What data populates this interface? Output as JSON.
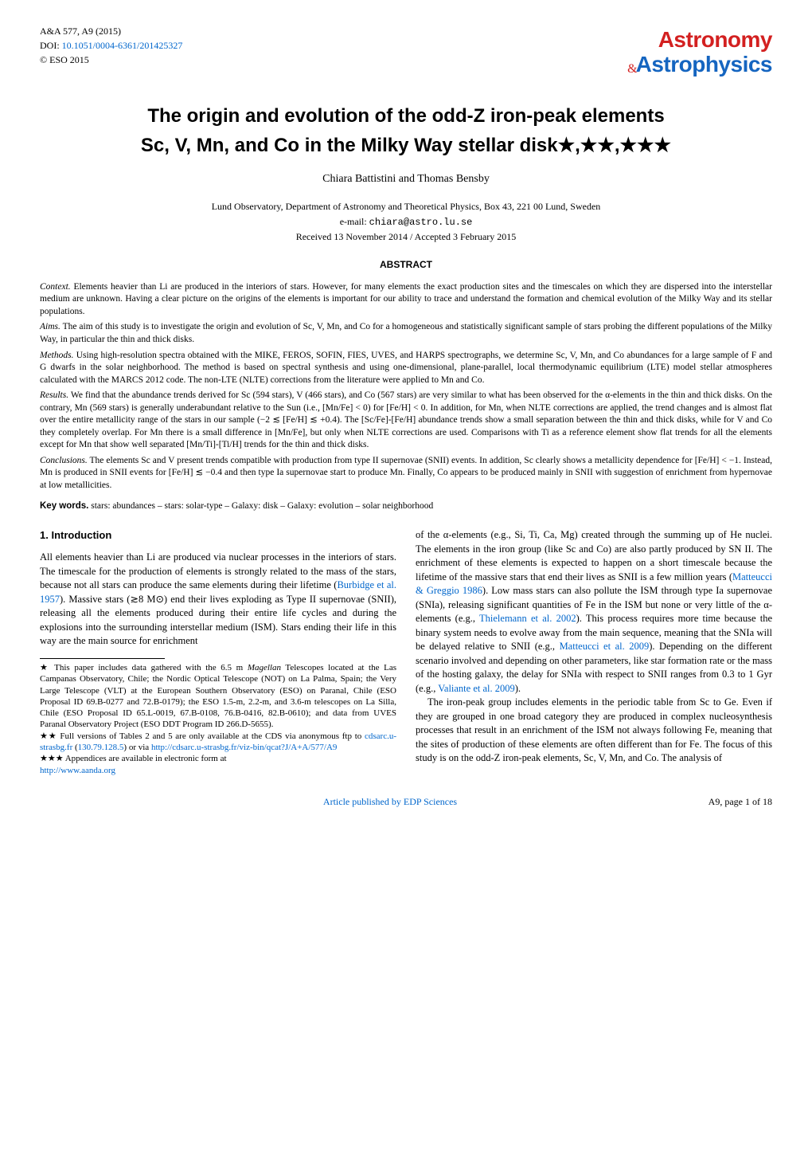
{
  "header": {
    "journal_ref": "A&A 577, A9 (2015)",
    "doi_label": "DOI: ",
    "doi": "10.1051/0004-6361/201425327",
    "copyright": "© ESO 2015",
    "logo_top": "Astronomy",
    "logo_amp": "&",
    "logo_bottom": "Astrophysics"
  },
  "title_line1": "The origin and evolution of the odd-Z iron-peak elements",
  "title_line2": "Sc, V, Mn, and Co in the Milky Way stellar disk",
  "title_stars": "★,★★,★★★",
  "authors": "Chiara Battistini and Thomas Bensby",
  "affiliation": "Lund Observatory, Department of Astronomy and Theoretical Physics, Box 43, 221 00 Lund, Sweden",
  "email_label": "e-mail: ",
  "email": "chiara@astro.lu.se",
  "dates": "Received 13 November 2014 / Accepted 3 February 2015",
  "abstract_heading": "ABSTRACT",
  "abstract": {
    "context_label": "Context.",
    "context": " Elements heavier than Li are produced in the interiors of stars. However, for many elements the exact production sites and the timescales on which they are dispersed into the interstellar medium are unknown. Having a clear picture on the origins of the elements is important for our ability to trace and understand the formation and chemical evolution of the Milky Way and its stellar populations.",
    "aims_label": "Aims.",
    "aims": " The aim of this study is to investigate the origin and evolution of Sc, V, Mn, and Co for a homogeneous and statistically significant sample of stars probing the different populations of the Milky Way, in particular the thin and thick disks.",
    "methods_label": "Methods.",
    "methods": " Using high-resolution spectra obtained with the MIKE, FEROS, SOFIN, FIES, UVES, and HARPS spectrographs, we determine Sc, V, Mn, and Co abundances for a large sample of F and G dwarfs in the solar neighborhood. The method is based on spectral synthesis and using one-dimensional, plane-parallel, local thermodynamic equilibrium (LTE) model stellar atmospheres calculated with the MARCS 2012 code. The non-LTE (NLTE) corrections from the literature were applied to Mn and Co.",
    "results_label": "Results.",
    "results": " We find that the abundance trends derived for Sc (594 stars), V (466 stars), and Co (567 stars) are very similar to what has been observed for the α-elements in the thin and thick disks. On the contrary, Mn (569 stars) is generally underabundant relative to the Sun (i.e., [Mn/Fe] < 0) for [Fe/H] < 0. In addition, for Mn, when NLTE corrections are applied, the trend changes and is almost flat over the entire metallicity range of the stars in our sample (−2 ≲ [Fe/H] ≲ +0.4). The [Sc/Fe]-[Fe/H] abundance trends show a small separation between the thin and thick disks, while for V and Co they completely overlap. For Mn there is a small difference in [Mn/Fe], but only when NLTE corrections are used. Comparisons with Ti as a reference element show flat trends for all the elements except for Mn that show well separated [Mn/Ti]-[Ti/H] trends for the thin and thick disks.",
    "conclusions_label": "Conclusions.",
    "conclusions": " The elements Sc and V present trends compatible with production from type II supernovae (SNII) events. In addition, Sc clearly shows a metallicity dependence for [Fe/H] < −1. Instead, Mn is produced in SNII events for [Fe/H] ≲ −0.4 and then type Ia supernovae start to produce Mn. Finally, Co appears to be produced mainly in SNII with suggestion of enrichment from hypernovae at low metallicities."
  },
  "keywords_label": "Key words.",
  "keywords": " stars: abundances – stars: solar-type – Galaxy: disk – Galaxy: evolution – solar neighborhood",
  "section1_heading": "1. Introduction",
  "intro_para1_a": "All elements heavier than Li are produced via nuclear processes in the interiors of stars. The timescale for the production of elements is strongly related to the mass of the stars, because not all stars can produce the same elements during their lifetime (",
  "intro_para1_cite1": "Burbidge et al. 1957",
  "intro_para1_b": "). Massive stars (≳8 M⊙) end their lives exploding as Type II supernovae (SNII), releasing all the elements produced during their entire life cycles and during the explosions into the surrounding interstellar medium (ISM). Stars ending their life in this way are the main source for enrichment",
  "col2_para1_a": "of the α-elements (e.g., Si, Ti, Ca, Mg) created through the summing up of He nuclei. The elements in the iron group (like Sc and Co) are also partly produced by SN II. The enrichment of these elements is expected to happen on a short timescale because the lifetime of the massive stars that end their lives as SNII is a few million years (",
  "col2_cite1": "Matteucci & Greggio 1986",
  "col2_para1_b": "). Low mass stars can also pollute the ISM through type Ia supernovae (SNIa), releasing significant quantities of Fe in the ISM but none or very little of the α-elements (e.g., ",
  "col2_cite2": "Thielemann et al. 2002",
  "col2_para1_c": "). This process requires more time because the binary system needs to evolve away from the main sequence, meaning that the SNIa will be delayed relative to SNII (e.g., ",
  "col2_cite3": "Matteucci et al. 2009",
  "col2_para1_d": "). Depending on the different scenario involved and depending on other parameters, like star formation rate or the mass of the hosting galaxy, the delay for SNIa with respect to SNII ranges from 0.3 to 1 Gyr (e.g., ",
  "col2_cite4": "Valiante et al. 2009",
  "col2_para1_e": ").",
  "col2_para2": "The iron-peak group includes elements in the periodic table from Sc to Ge. Even if they are grouped in one broad category they are produced in complex nucleosynthesis processes that result in an enrichment of the ISM not always following Fe, meaning that the sites of production of these elements are often different than for Fe. The focus of this study is on the odd-Z iron-peak elements, Sc, V, Mn, and Co. The analysis of",
  "footnote1_a": "★ This paper includes data gathered with the 6.5 m ",
  "footnote1_magellan": "Magellan",
  "footnote1_b": " Telescopes located at the Las Campanas Observatory, Chile; the Nordic Optical Telescope (NOT) on La Palma, Spain; the Very Large Telescope (VLT) at the European Southern Observatory (ESO) on Paranal, Chile (ESO Proposal ID 69.B-0277 and 72.B-0179); the ESO 1.5-m, 2.2-m, and 3.6-m telescopes on La Silla, Chile (ESO Proposal ID 65.L-0019, 67.B-0108, 76.B-0416, 82.B-0610); and data from UVES Paranal Observatory Project (ESO DDT Program ID 266.D-5655).",
  "footnote2_a": "★★ Full versions of Tables 2 and 5 are only available at the CDS via anonymous ftp to ",
  "footnote2_link1": "cdsarc.u-strasbg.fr",
  "footnote2_b": " (",
  "footnote2_link2": "130.79.128.5",
  "footnote2_c": ") or via ",
  "footnote2_link3": "http://cdsarc.u-strasbg.fr/viz-bin/qcat?J/A+A/577/A9",
  "footnote3_a": "★★★ Appendices are available in electronic form at",
  "footnote3_link": "http://www.aanda.org",
  "footer_center": "Article published by EDP Sciences",
  "footer_right": "A9, page 1 of 18"
}
